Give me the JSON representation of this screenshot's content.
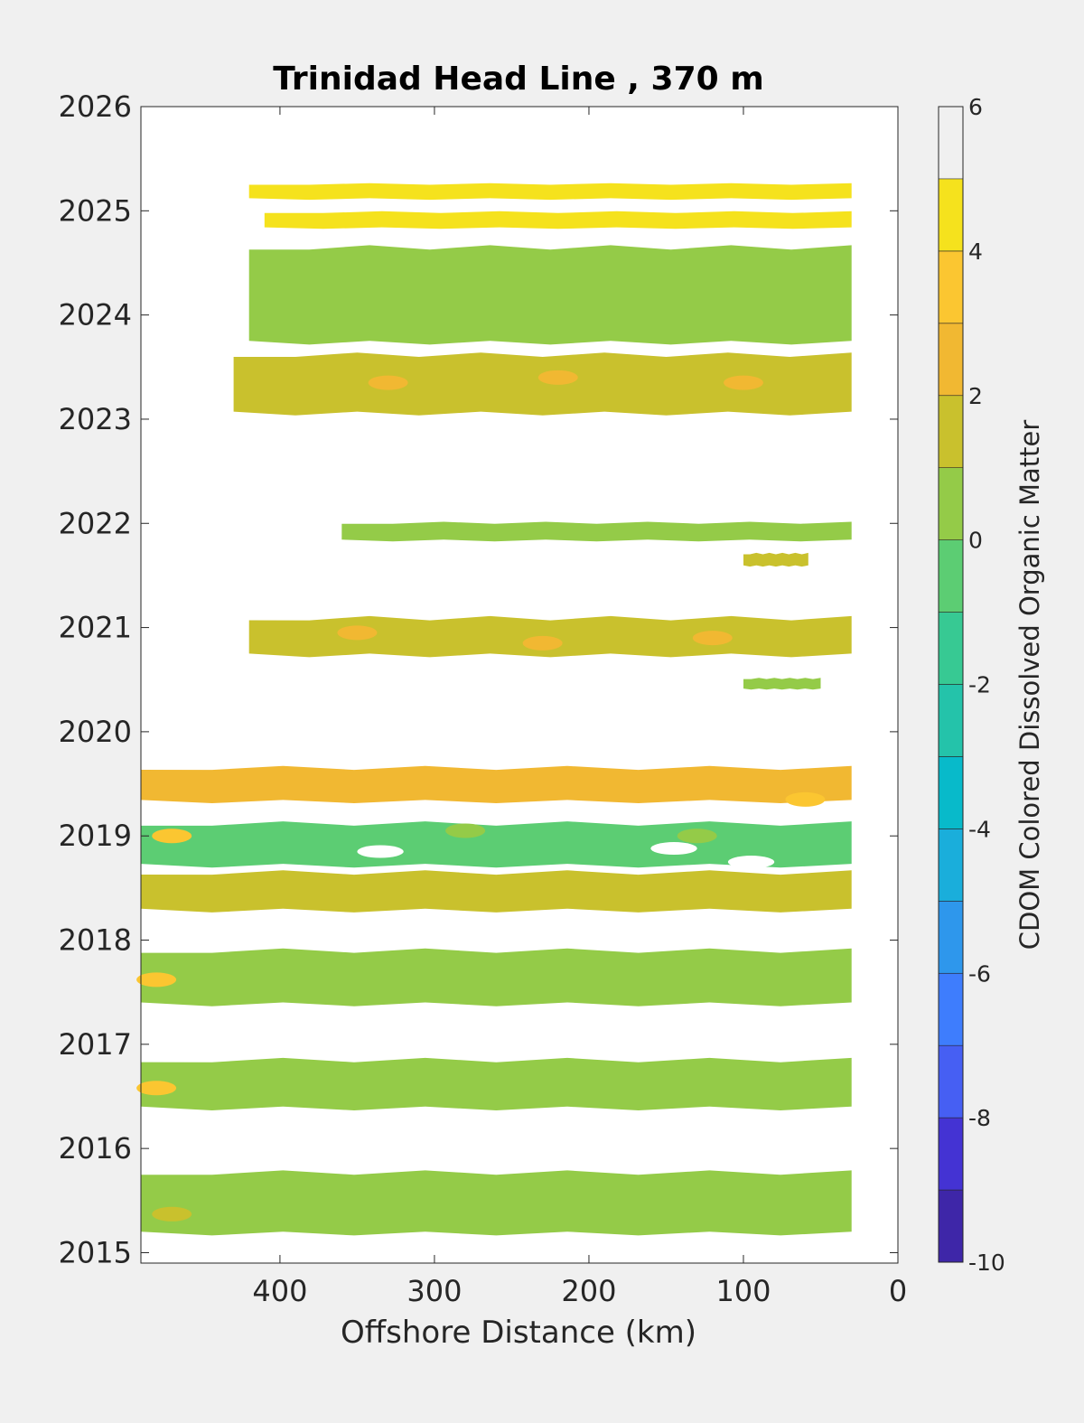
{
  "chart_data": {
    "type": "heatmap",
    "title": "Trinidad Head Line , 370 m",
    "xlabel": "Offshore Distance (km)",
    "ylabel": "",
    "xlim": [
      490,
      0
    ],
    "ylim": [
      2014.9,
      2026
    ],
    "x_ticks": [
      "400",
      "300",
      "200",
      "100",
      "0"
    ],
    "y_ticks": [
      "2015",
      "2016",
      "2017",
      "2018",
      "2019",
      "2020",
      "2021",
      "2022",
      "2023",
      "2024",
      "2025",
      "2026"
    ],
    "colorbar": {
      "label": "CDOM Colored Dissolved Organic Matter",
      "ticks": [
        "-10",
        "-8",
        "-6",
        "-4",
        "-2",
        "0",
        "2",
        "4",
        "6"
      ],
      "levels": [
        -10,
        -9,
        -8,
        -7,
        -6,
        -5,
        -4,
        -3,
        -2,
        -1,
        0,
        1,
        2,
        3,
        4,
        5,
        6
      ],
      "colors": [
        "#3e26a8",
        "#4433d3",
        "#465ff3",
        "#3e7dfd",
        "#2e97ec",
        "#1aaedb",
        "#08baca",
        "#24c3aa",
        "#37c993",
        "#5ccd73",
        "#94cb48",
        "#c9c12d",
        "#f1b832",
        "#fbc631",
        "#f5e21d"
      ]
    },
    "bands": [
      {
        "y": [
          2015.15,
          2015.8
        ],
        "x": [
          490,
          30
        ],
        "value": 0.5
      },
      {
        "y": [
          2016.35,
          2016.88
        ],
        "x": [
          490,
          30
        ],
        "value": 0.5
      },
      {
        "y": [
          2017.35,
          2017.93
        ],
        "x": [
          490,
          30
        ],
        "value": 0.5
      },
      {
        "y": [
          2018.25,
          2018.68
        ],
        "x": [
          490,
          30
        ],
        "value": 1.5
      },
      {
        "y": [
          2018.68,
          2019.15
        ],
        "x": [
          490,
          30
        ],
        "value": -0.5
      },
      {
        "y": [
          2019.3,
          2019.68
        ],
        "x": [
          490,
          30
        ],
        "value": 2.5
      },
      {
        "y": [
          2020.4,
          2020.52
        ],
        "x": [
          100,
          50
        ],
        "value": 0.5
      },
      {
        "y": [
          2020.7,
          2021.12
        ],
        "x": [
          420,
          30
        ],
        "value": 1.5
      },
      {
        "y": [
          2021.58,
          2021.72
        ],
        "x": [
          100,
          58
        ],
        "value": 1.5
      },
      {
        "y": [
          2021.82,
          2022.02
        ],
        "x": [
          360,
          30
        ],
        "value": 0.5
      },
      {
        "y": [
          2023.02,
          2023.65
        ],
        "x": [
          430,
          30
        ],
        "value": 1.5
      },
      {
        "y": [
          2023.7,
          2024.68
        ],
        "x": [
          420,
          30
        ],
        "value": 0.5
      },
      {
        "y": [
          2024.82,
          2025.0
        ],
        "x": [
          410,
          30
        ],
        "value": 4.5
      },
      {
        "y": [
          2025.1,
          2025.27
        ],
        "x": [
          420,
          30
        ],
        "value": 4.5
      }
    ],
    "patches": [
      {
        "x": 470,
        "y": 2019.0,
        "value": 3.5
      },
      {
        "x": 480,
        "y": 2017.62,
        "value": 3.5
      },
      {
        "x": 480,
        "y": 2016.58,
        "value": 3.5
      },
      {
        "x": 470,
        "y": 2015.37,
        "value": 1.5
      },
      {
        "x": 60,
        "y": 2019.35,
        "value": 3.5
      },
      {
        "x": 330,
        "y": 2023.35,
        "value": 2.5
      },
      {
        "x": 220,
        "y": 2023.4,
        "value": 2.5
      },
      {
        "x": 100,
        "y": 2023.35,
        "value": 2.5
      },
      {
        "x": 350,
        "y": 2020.95,
        "value": 2.5
      },
      {
        "x": 230,
        "y": 2020.85,
        "value": 2.5
      },
      {
        "x": 120,
        "y": 2020.9,
        "value": 2.5
      },
      {
        "x": 280,
        "y": 2019.05,
        "value": 0.5
      },
      {
        "x": 130,
        "y": 2019.0,
        "value": 0.5
      }
    ],
    "gaps": [
      {
        "x1": 350,
        "x2": 320,
        "y": 2018.85
      },
      {
        "x1": 160,
        "x2": 130,
        "y": 2018.88
      },
      {
        "x1": 110,
        "x2": 80,
        "y": 2018.75
      }
    ]
  }
}
